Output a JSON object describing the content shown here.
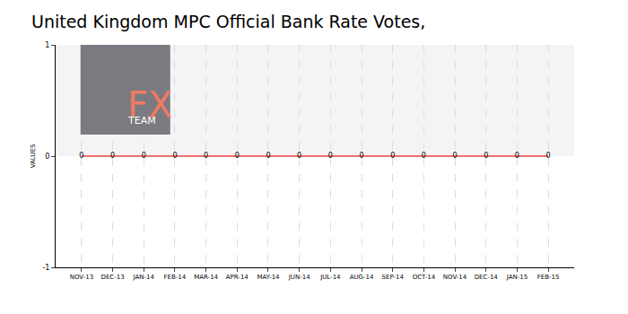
{
  "chart_data": {
    "type": "line",
    "title": "United Kingdom MPC Official Bank Rate Votes,",
    "y_label": "VALUES",
    "categories": [
      "NOV-13",
      "DEC-13",
      "JAN-14",
      "FEB-14",
      "MAR-14",
      "APR-14",
      "MAY-14",
      "JUN-14",
      "JUL-14",
      "AUG-14",
      "SEP-14",
      "OCT-14",
      "NOV-14",
      "DEC-14",
      "JAN-15",
      "FEB-15"
    ],
    "values": [
      0,
      0,
      0,
      0,
      0,
      0,
      0,
      0,
      0,
      0,
      0,
      0,
      0,
      0,
      0,
      0
    ],
    "color": "#e8463a",
    "ylim": [
      -1,
      1
    ],
    "yticks": [
      -1,
      0,
      1
    ],
    "grid": true,
    "data_labels": true,
    "annotations": [
      "FX",
      "TEAM"
    ]
  }
}
